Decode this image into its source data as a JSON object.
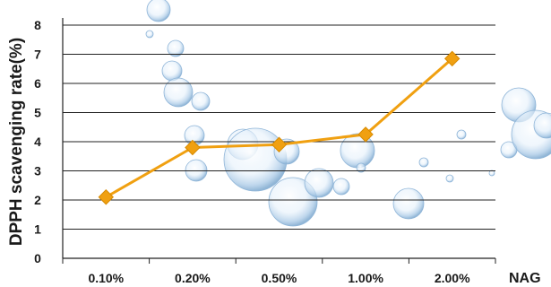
{
  "chart_data": {
    "type": "line",
    "categories": [
      "0.10%",
      "0.20%",
      "0.50%",
      "1.00%",
      "2.00%"
    ],
    "series": [
      {
        "values": [
          2.1,
          3.8,
          3.9,
          4.25,
          6.85
        ]
      }
    ],
    "ylabel": "DPPH scavenging rate(%)",
    "xlabel": "NAG",
    "ylim": [
      0,
      8
    ],
    "yticks": [
      0,
      1,
      2,
      3,
      4,
      5,
      6,
      7,
      8
    ],
    "grid": true,
    "legend": "none",
    "line_color": "#f0a011",
    "marker_color": "#f0a011",
    "marker": "diamond"
  }
}
